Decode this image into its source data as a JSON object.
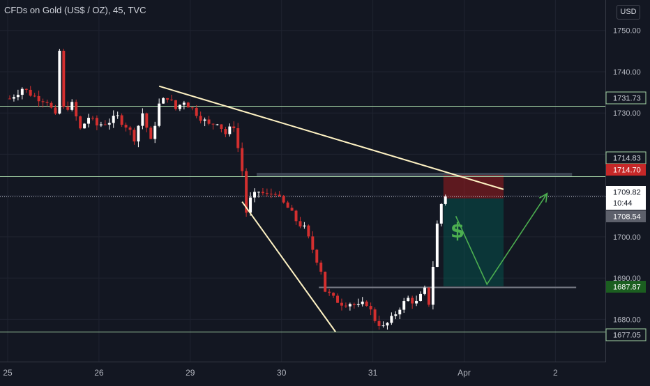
{
  "header": {
    "title": "CFDs on Gold (US$ / OZ), 45, TVC",
    "currency_button": "USD"
  },
  "colors": {
    "background": "#131722",
    "grid": "#1f2330",
    "up_candle": "#ffffff",
    "down_candle": "#d32f2f",
    "level_line": "#a5d6a7",
    "trendline": "#fff3c4",
    "zone": "#434a5a",
    "stop_zone": "#b71c1c",
    "target_zone": "#00695c",
    "arrow": "#4caf50",
    "dollar": "#4caf50",
    "last_price_label": "#ffffff",
    "red_label": "#c62828",
    "green_label": "#1b5e20",
    "grey_label": "#5d606b"
  },
  "chart_data": {
    "type": "candlestick",
    "title": "CFDs on Gold (US$ / OZ), 45, TVC",
    "x_ticks": [
      "25",
      "26",
      "29",
      "30",
      "31",
      "Apr",
      "2"
    ],
    "y_ticks": [
      1680,
      1690,
      1700,
      1710,
      1720,
      1730,
      1740,
      1750
    ],
    "y_tick_labels": [
      "1680.00",
      "1690.00",
      "1700.00",
      "1710.00",
      "1720.00",
      "1730.00",
      "1740.00",
      "1750.00"
    ],
    "ylim": [
      1675.5,
      1753.5
    ],
    "grid": true,
    "price_scale": "right",
    "session_days": [
      {
        "label": "25",
        "start": 1,
        "end": 22
      },
      {
        "label": "26",
        "start": 23,
        "end": 44
      },
      {
        "label": "29",
        "start": 45,
        "end": 66
      },
      {
        "label": "30",
        "start": 67,
        "end": 88
      },
      {
        "label": "31",
        "start": 89,
        "end": 110
      },
      {
        "label": "Apr",
        "start": 111,
        "end": 132
      },
      {
        "label": "2",
        "start": 133,
        "end": 154
      }
    ],
    "candles_path": [
      [
        1,
        1733.5
      ],
      [
        4,
        1736
      ],
      [
        7,
        1734
      ],
      [
        10,
        1733
      ],
      [
        12,
        1729
      ],
      [
        13,
        1745
      ],
      [
        14,
        1731
      ],
      [
        16,
        1732
      ],
      [
        18,
        1726
      ],
      [
        20,
        1729
      ],
      [
        22,
        1727
      ],
      [
        25,
        1728
      ],
      [
        27,
        1729
      ],
      [
        29,
        1727
      ],
      [
        31,
        1724
      ],
      [
        33,
        1730
      ],
      [
        35,
        1723
      ],
      [
        37,
        1732
      ],
      [
        39,
        1734
      ],
      [
        41,
        1731
      ],
      [
        43,
        1733
      ],
      [
        45,
        1731
      ],
      [
        47,
        1729
      ],
      [
        49,
        1727
      ],
      [
        51,
        1728
      ],
      [
        53,
        1725
      ],
      [
        55,
        1727
      ],
      [
        57,
        1716
      ],
      [
        58,
        1706
      ],
      [
        59,
        1709
      ],
      [
        61,
        1711
      ],
      [
        63,
        1710
      ],
      [
        65,
        1711
      ],
      [
        66,
        1709
      ],
      [
        68,
        1707
      ],
      [
        70,
        1704
      ],
      [
        72,
        1702
      ],
      [
        74,
        1697
      ],
      [
        76,
        1692
      ],
      [
        77,
        1687
      ],
      [
        79,
        1685
      ],
      [
        81,
        1684
      ],
      [
        83,
        1684
      ],
      [
        85,
        1683
      ],
      [
        87,
        1684
      ],
      [
        89,
        1680
      ],
      [
        91,
        1678
      ],
      [
        93,
        1680
      ],
      [
        95,
        1683
      ],
      [
        97,
        1685
      ],
      [
        99,
        1684
      ],
      [
        101,
        1687
      ],
      [
        102,
        1684
      ],
      [
        103,
        1693
      ],
      [
        104,
        1703
      ],
      [
        105,
        1708
      ],
      [
        106,
        1709.8
      ]
    ],
    "levels": [
      {
        "price": 1731.73,
        "label": "1731.73",
        "style": "solid",
        "tag": "outline"
      },
      {
        "price": 1714.83,
        "label": "1714.83",
        "style": "none",
        "tag": "outline"
      },
      {
        "price": 1714.7,
        "label": "1714.70",
        "style": "solid",
        "tag": "red"
      },
      {
        "price": 1709.82,
        "label": "1709.82",
        "style": "dotted",
        "tag": "last"
      },
      {
        "price": 1708.54,
        "label": "1708.54",
        "style": "none",
        "tag": "grey"
      },
      {
        "price": 1687.87,
        "label": "1687.87",
        "style": "grey",
        "tag": "green"
      },
      {
        "price": 1677.05,
        "label": "1677.05",
        "style": "solid",
        "tag": "outline"
      }
    ],
    "countdown": "10:44",
    "resistance_zone": {
      "bar_start": 61,
      "bar_end": 137,
      "price_top": 1715.5,
      "price_bottom": 1714.7
    },
    "trendline_upper": {
      "from": [
        37.5,
        1736.5
      ],
      "to": [
        120.5,
        1711.5
      ]
    },
    "trendline_lower": {
      "from": [
        57.5,
        1708.5
      ],
      "to": [
        80,
        1677
      ]
    },
    "position": {
      "bar_start": 106,
      "bar_end": 120.5,
      "entry": 1709.3,
      "stop": 1715,
      "target": 1688
    },
    "projection_arrow": [
      [
        109,
        1705
      ],
      [
        116.5,
        1688.5
      ],
      [
        131,
        1710.5
      ]
    ],
    "annotation_symbol": "$"
  }
}
